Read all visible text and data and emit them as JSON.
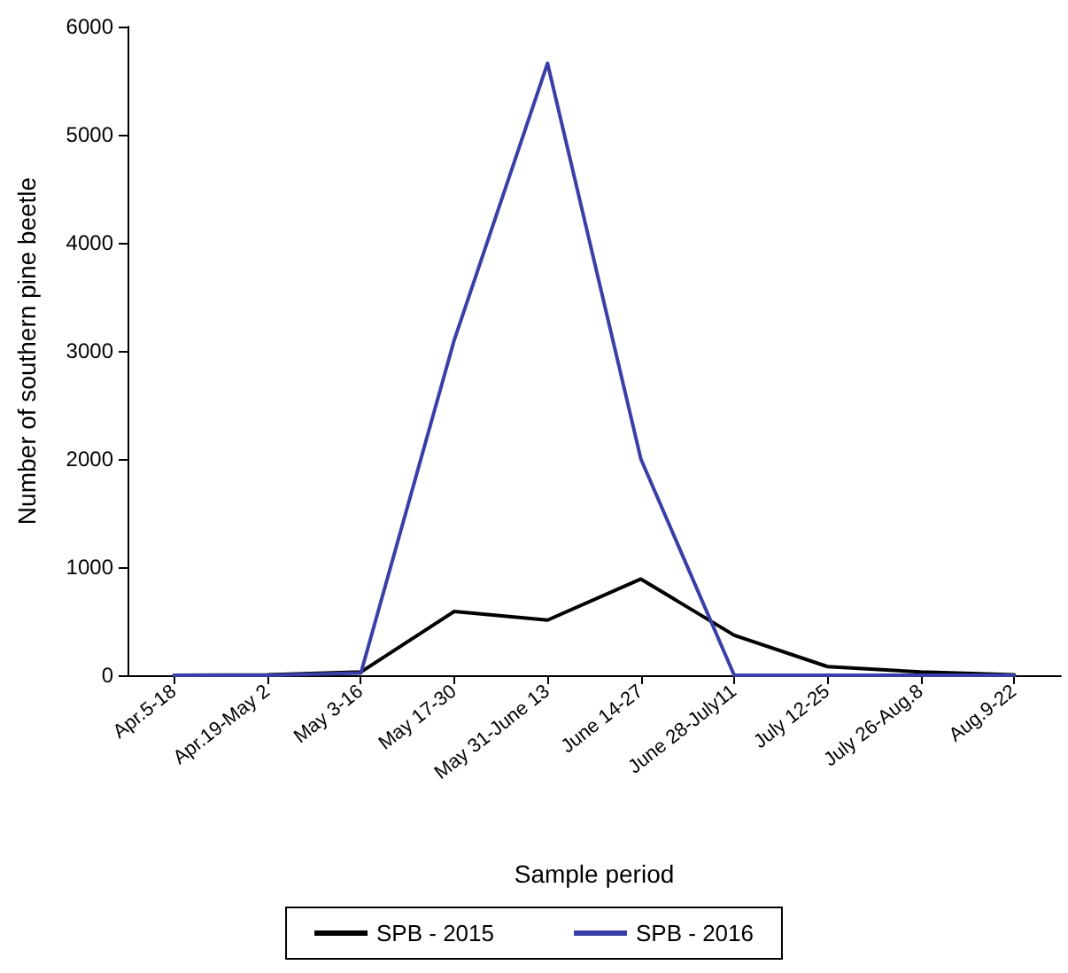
{
  "chart_data": {
    "type": "line",
    "xlabel": "Sample period",
    "ylabel": "Number of southern pine beetle",
    "categories": [
      "Apr.5-18",
      "Apr.19-May 2",
      "May 3-16",
      "May 17-30",
      "May 31-June 13",
      "June 14-27",
      "June 28-July11",
      "July 12-25",
      "July 26-Aug.8",
      "Aug.9-22"
    ],
    "series": [
      {
        "name": "SPB - 2015",
        "color": "#000000",
        "values": [
          0,
          5,
          30,
          590,
          510,
          890,
          370,
          80,
          30,
          5
        ]
      },
      {
        "name": "SPB - 2016",
        "color": "#3a3fa8",
        "values": [
          0,
          0,
          20,
          3100,
          5660,
          2000,
          0,
          0,
          0,
          0
        ]
      }
    ],
    "ylim": [
      0,
      6000
    ],
    "yticks": [
      0,
      1000,
      2000,
      3000,
      4000,
      5000,
      6000
    ],
    "grid": false,
    "legend": "bottom",
    "marker": "none",
    "line_style": "solid"
  }
}
